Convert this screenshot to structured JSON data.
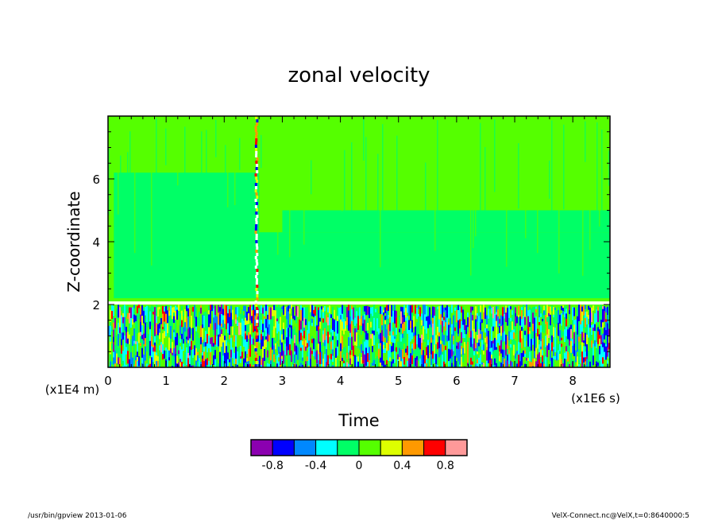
{
  "chart_data": {
    "type": "heatmap",
    "title": "zonal velocity",
    "xlabel": "Time",
    "ylabel": "Z-coordinate",
    "x_unit": "(x1E6 s)",
    "y_unit": "(x1E4 m)",
    "xlim": [
      0,
      8.64
    ],
    "ylim": [
      0,
      8
    ],
    "x_ticks": [
      0,
      1,
      2,
      3,
      4,
      5,
      6,
      7,
      8
    ],
    "x_tick_labels": [
      "0",
      "1",
      "2",
      "3",
      "4",
      "5",
      "6",
      "7",
      "8"
    ],
    "y_ticks": [
      2,
      4,
      6
    ],
    "y_tick_labels": [
      "2",
      "4",
      "6"
    ],
    "colorbar": {
      "colors": [
        "#8b00b0",
        "#0000ff",
        "#0088ff",
        "#00ffff",
        "#00ff66",
        "#55ff00",
        "#ddff00",
        "#ff9900",
        "#ff0000",
        "#ff9999"
      ],
      "bounds": [
        -1.0,
        -0.8,
        -0.6,
        -0.4,
        -0.2,
        0,
        0.2,
        0.4,
        0.6,
        0.8,
        1.0
      ],
      "tick_labels": [
        "-0.8",
        "-0.4",
        "0",
        "0.4",
        "0.8"
      ],
      "tick_values": [
        -0.8,
        -0.4,
        0,
        0.4,
        0.8
      ]
    },
    "regions": [
      {
        "x": [
          0,
          8.64
        ],
        "y": [
          2.1,
          8
        ],
        "value": 0.05,
        "note": "upper layer mostly light green (0 to 0.2)"
      },
      {
        "x": [
          0.1,
          2.6
        ],
        "y": [
          2.2,
          6.2
        ],
        "value": -0.05
      },
      {
        "x": [
          2.6,
          8.64
        ],
        "y": [
          2.2,
          4.3
        ],
        "value": -0.05
      },
      {
        "x": [
          3.0,
          8.64
        ],
        "y": [
          4.3,
          5.0
        ],
        "value": -0.05
      },
      {
        "x": [
          0,
          8.64
        ],
        "y": [
          0,
          2.0
        ],
        "value": 0,
        "note": "turbulent band, values span -1 to 1"
      }
    ]
  },
  "footer": {
    "left": "/usr/bin/gpview   2013-01-06",
    "right": "VelX-Connect.nc@VelX,t=0:8640000:5"
  }
}
